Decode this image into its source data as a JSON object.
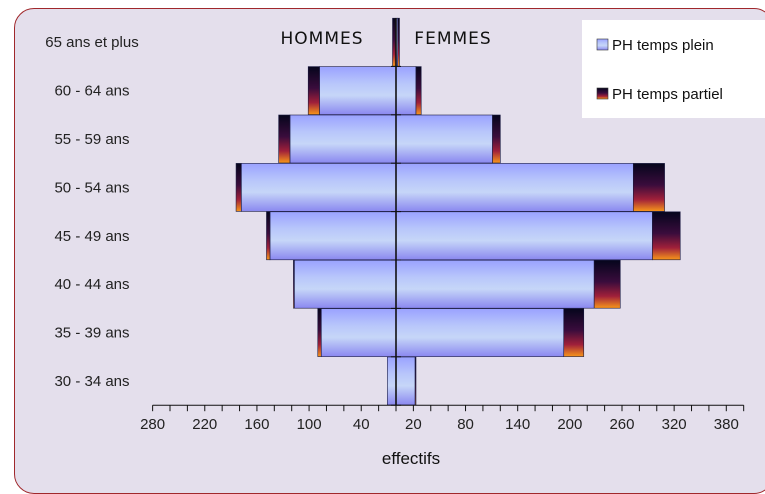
{
  "chart_data": {
    "type": "bar",
    "orientation": "horizontal-pyramid",
    "categories": [
      "30 - 34 ans",
      "35 - 39 ans",
      "40 - 44 ans",
      "45 - 49 ans",
      "50 - 54 ans",
      "55 - 59 ans",
      "60 - 64 ans",
      "65 ans et plus"
    ],
    "left_side_label": "HOMMES",
    "right_side_label": "FEMMES",
    "series": [
      {
        "name": "PH temps plein",
        "hommes": [
          10,
          86,
          117,
          145,
          178,
          122,
          88,
          0
        ],
        "femmes": [
          22,
          193,
          228,
          295,
          273,
          111,
          23,
          2
        ]
      },
      {
        "name": "PH temps partiel",
        "hommes": [
          0,
          4,
          1,
          4,
          6,
          13,
          13,
          4
        ],
        "femmes": [
          1,
          23,
          30,
          32,
          36,
          9,
          6,
          2
        ]
      }
    ],
    "xlabel": "effectifs",
    "xticks": [
      "280",
      "220",
      "160",
      "100",
      "40",
      "20",
      "80",
      "140",
      "200",
      "260",
      "320",
      "380"
    ],
    "xlim": [
      -280,
      400
    ],
    "legend_position": "top-right",
    "colors": {
      "plein_gradient": [
        "#a6b0ff",
        "#b4c8fa",
        "#8c90f2"
      ],
      "partiel_gradient": [
        "#06061e",
        "#6c1032",
        "#f07a10"
      ]
    }
  }
}
